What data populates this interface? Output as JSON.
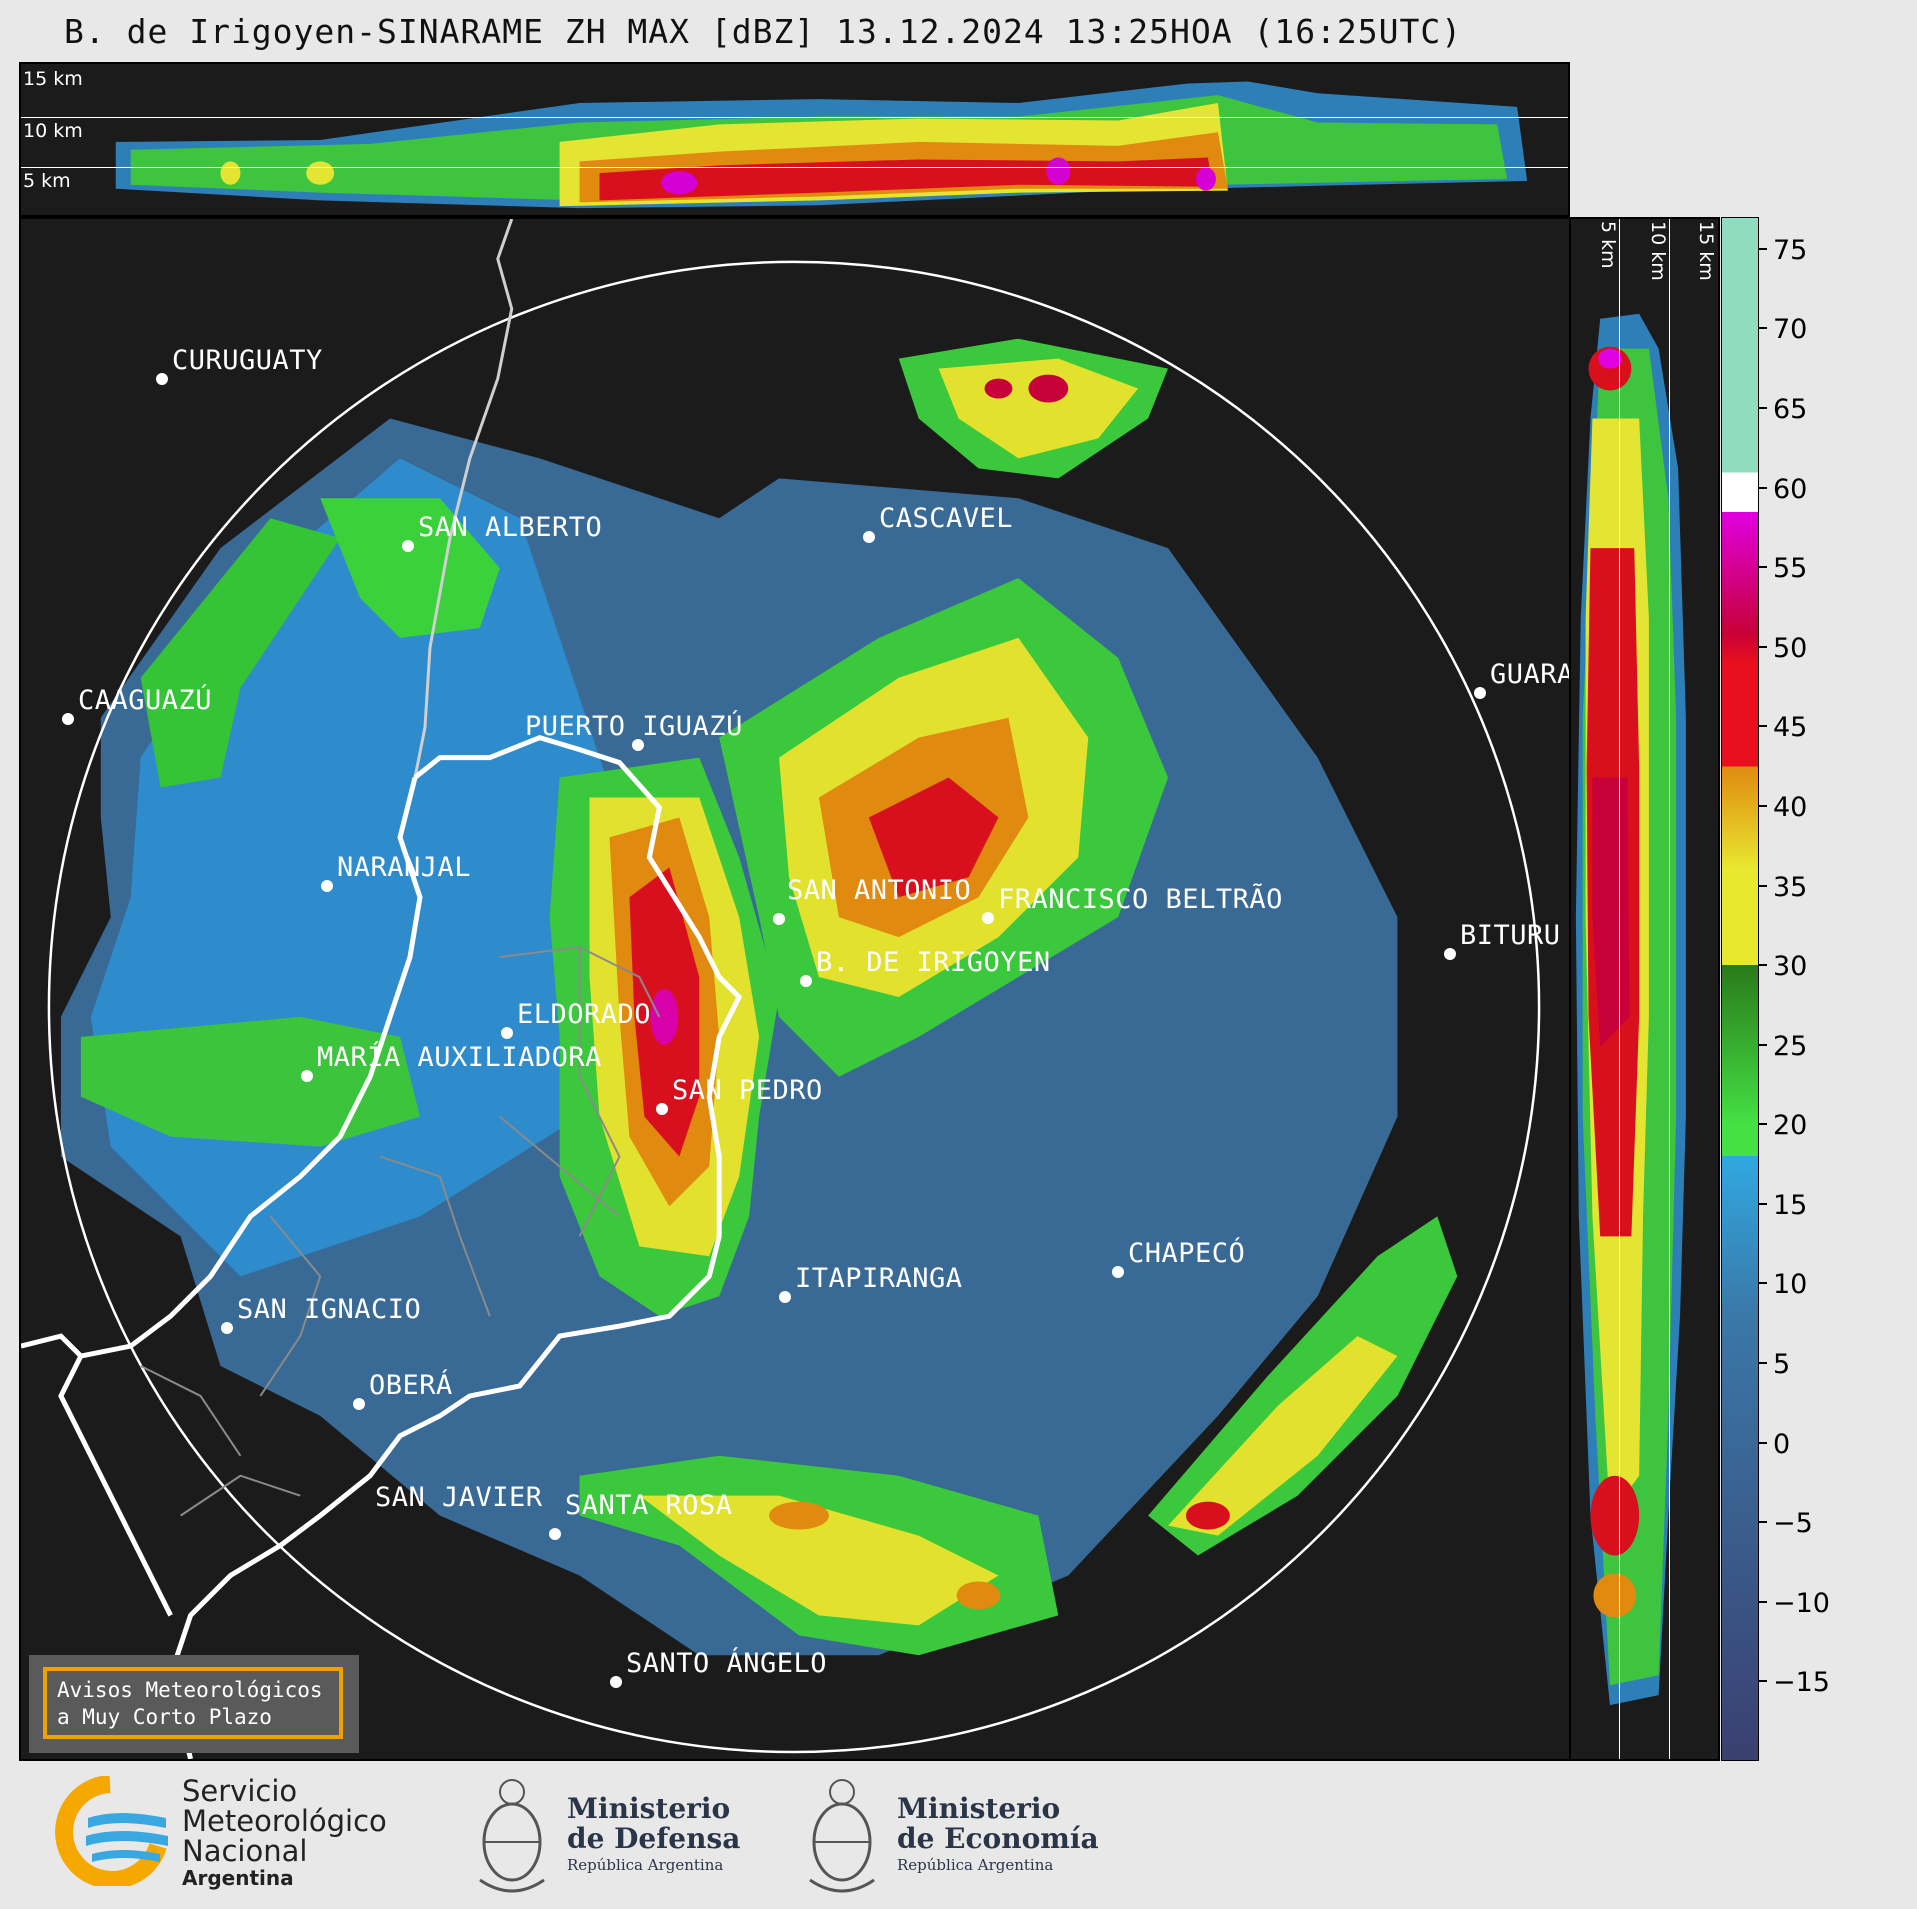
{
  "title": "B. de Irigoyen-SINARAME ZH MAX [dBZ] 13.12.2024 13:25HOA (16:25UTC)",
  "top_panel": {
    "altitude_labels": [
      "15 km",
      "10 km",
      "5 km"
    ]
  },
  "right_panel": {
    "altitude_labels": [
      "5 km",
      "10 km",
      "15 km"
    ]
  },
  "colorbar": {
    "unit": "dBZ",
    "ticks": [
      "75",
      "70",
      "65",
      "60",
      "55",
      "50",
      "45",
      "40",
      "35",
      "30",
      "25",
      "20",
      "15",
      "10",
      "5",
      "0",
      "−5",
      "−10",
      "−15"
    ],
    "range": [
      -20,
      77
    ],
    "colors": {
      "teal": "#8fdcc0",
      "white": "#ffffff",
      "magenta": "#e000e0",
      "crimson": "#c8003a",
      "red": "#e8101e",
      "orange": "#e08a10",
      "yellow": "#e8e830",
      "darkgreen": "#2a7a1a",
      "green": "#44e044",
      "cyan": "#30a8e0",
      "blue": "#3a78a8",
      "navy": "#3a4070"
    }
  },
  "cities": [
    {
      "name": "CURUGUATY"
    },
    {
      "name": "SAN ALBERTO"
    },
    {
      "name": "CASCAVEL"
    },
    {
      "name": "CAAGUAZÚ"
    },
    {
      "name": "GUARA"
    },
    {
      "name": "PUERTO IGUAZÚ"
    },
    {
      "name": "NARANJAL"
    },
    {
      "name": "SAN ANTONIO"
    },
    {
      "name": "FRANCISCO BELTRÃO"
    },
    {
      "name": "BITURU"
    },
    {
      "name": "B. DE IRIGOYEN"
    },
    {
      "name": "ELDORADO"
    },
    {
      "name": "MARÍA AUXILIADORA"
    },
    {
      "name": "SAN PEDRO"
    },
    {
      "name": "CHAPECÓ"
    },
    {
      "name": "ITAPIRANGA"
    },
    {
      "name": "SAN IGNACIO"
    },
    {
      "name": "OBERÁ"
    },
    {
      "name": "SAN JAVIER"
    },
    {
      "name": "SANTA ROSA"
    },
    {
      "name": "SANTO ÁNGELO"
    }
  ],
  "alert": {
    "line1": "Avisos Meteorológicos",
    "line2": "a Muy Corto Plazo"
  },
  "footer": {
    "smn": {
      "line1": "Servicio",
      "line2": "Meteorológico",
      "line3": "Nacional",
      "line4": "Argentina"
    },
    "defensa": {
      "line1": "Ministerio",
      "line2": "de Defensa",
      "line3": "República Argentina"
    },
    "economia": {
      "line1": "Ministerio",
      "line2": "de Economía",
      "line3": "República Argentina"
    }
  }
}
